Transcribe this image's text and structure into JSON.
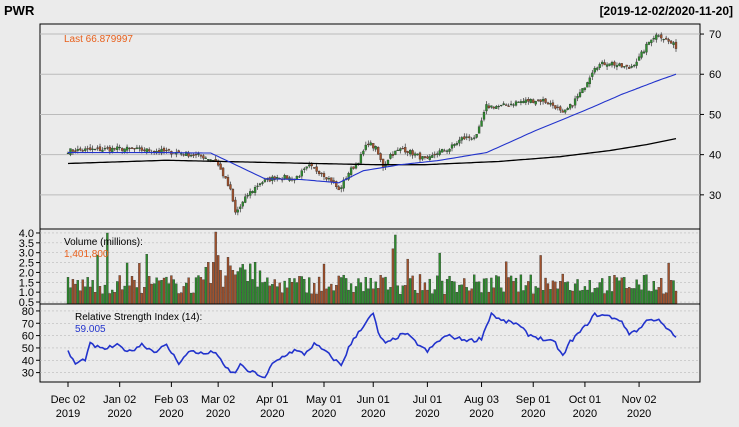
{
  "chart_data": {
    "type": "candlestick",
    "title": "PWR",
    "date_range": "[2019-12-02/2020-11-20]",
    "last_label": "Last 66.879997",
    "x_ticks": [
      {
        "d1": "Dec 02",
        "d2": "2019",
        "i": 0
      },
      {
        "d1": "Jan 02",
        "d2": "2020",
        "i": 21
      },
      {
        "d1": "Feb 03",
        "d2": "2020",
        "i": 42
      },
      {
        "d1": "Mar 02",
        "d2": "2020",
        "i": 61
      },
      {
        "d1": "Apr 01",
        "d2": "2020",
        "i": 83
      },
      {
        "d1": "May 01",
        "d2": "2020",
        "i": 104
      },
      {
        "d1": "Jun 01",
        "d2": "2020",
        "i": 124
      },
      {
        "d1": "Jul 01",
        "d2": "2020",
        "i": 146
      },
      {
        "d1": "Aug 03",
        "d2": "2020",
        "i": 168
      },
      {
        "d1": "Sep 01",
        "d2": "2020",
        "i": 189
      },
      {
        "d1": "Oct 01",
        "d2": "2020",
        "i": 210
      },
      {
        "d1": "Nov 02",
        "d2": "2020",
        "i": 232
      }
    ],
    "n_days": 248,
    "price_panel": {
      "ylim": [
        22,
        72
      ],
      "y_ticks": [
        30,
        40,
        50,
        60,
        70
      ],
      "close_anchors": [
        [
          0,
          41
        ],
        [
          10,
          41.2
        ],
        [
          21,
          41.5
        ],
        [
          35,
          41
        ],
        [
          45,
          40.5
        ],
        [
          55,
          39.5
        ],
        [
          60,
          38.5
        ],
        [
          63,
          35
        ],
        [
          66,
          31
        ],
        [
          68,
          25.5
        ],
        [
          70,
          27
        ],
        [
          73,
          30
        ],
        [
          78,
          33
        ],
        [
          85,
          34.5
        ],
        [
          92,
          34
        ],
        [
          98,
          37
        ],
        [
          103,
          35.5
        ],
        [
          108,
          33
        ],
        [
          110,
          31
        ],
        [
          114,
          35.5
        ],
        [
          118,
          38.5
        ],
        [
          122,
          43
        ],
        [
          125,
          41.5
        ],
        [
          128,
          37
        ],
        [
          131,
          40
        ],
        [
          136,
          41.5
        ],
        [
          141,
          40
        ],
        [
          146,
          38.5
        ],
        [
          150,
          40.5
        ],
        [
          155,
          41.5
        ],
        [
          160,
          44
        ],
        [
          166,
          44.5
        ],
        [
          170,
          52
        ],
        [
          176,
          52
        ],
        [
          182,
          53
        ],
        [
          188,
          53.5
        ],
        [
          193,
          53.5
        ],
        [
          198,
          52
        ],
        [
          201,
          50
        ],
        [
          204,
          52
        ],
        [
          209,
          56
        ],
        [
          214,
          62
        ],
        [
          220,
          63
        ],
        [
          224,
          62
        ],
        [
          228,
          61.5
        ],
        [
          232,
          64
        ],
        [
          237,
          69
        ],
        [
          240,
          70
        ],
        [
          243,
          68.5
        ],
        [
          247,
          66.88
        ]
      ],
      "sma_black_anchors": [
        [
          0,
          37.8
        ],
        [
          40,
          38.6
        ],
        [
          70,
          38.2
        ],
        [
          100,
          37.8
        ],
        [
          125,
          37.5
        ],
        [
          145,
          37.5
        ],
        [
          175,
          38.3
        ],
        [
          200,
          39.5
        ],
        [
          220,
          41
        ],
        [
          235,
          42.5
        ],
        [
          247,
          44
        ]
      ],
      "sma_blue_anchors": [
        [
          0,
          40.5
        ],
        [
          40,
          40.5
        ],
        [
          58,
          40.4
        ],
        [
          68,
          37.5
        ],
        [
          80,
          34
        ],
        [
          95,
          33.8
        ],
        [
          110,
          33
        ],
        [
          120,
          36
        ],
        [
          135,
          37.5
        ],
        [
          150,
          38.5
        ],
        [
          170,
          40.5
        ],
        [
          190,
          46
        ],
        [
          210,
          51
        ],
        [
          225,
          55
        ],
        [
          240,
          58.5
        ],
        [
          247,
          60
        ]
      ]
    },
    "volume_panel": {
      "label": "Volume (millions):",
      "last_value": "1,401,800",
      "ylim": [
        0.4,
        4.1
      ],
      "y_ticks": [
        0.5,
        1.0,
        1.5,
        2.0,
        2.5,
        3.0,
        3.5,
        4.0
      ],
      "y_tick_labels": [
        "0.5",
        "1.0",
        "1.5",
        "2.0",
        "2.5",
        "3.0",
        "3.5",
        "4.0"
      ]
    },
    "rsi_panel": {
      "label": "Relative Strength Index (14):",
      "last_value": "59.005",
      "ylim": [
        24,
        84
      ],
      "y_ticks": [
        30,
        40,
        50,
        60,
        70,
        80
      ],
      "anchors": [
        [
          0,
          47
        ],
        [
          3,
          37
        ],
        [
          7,
          41
        ],
        [
          9,
          53
        ],
        [
          14,
          49
        ],
        [
          20,
          52
        ],
        [
          25,
          47
        ],
        [
          30,
          53
        ],
        [
          35,
          47
        ],
        [
          40,
          52
        ],
        [
          45,
          38
        ],
        [
          50,
          48
        ],
        [
          55,
          45
        ],
        [
          60,
          47
        ],
        [
          63,
          36
        ],
        [
          66,
          31
        ],
        [
          68,
          29
        ],
        [
          70,
          38
        ],
        [
          72,
          32
        ],
        [
          77,
          29
        ],
        [
          80,
          25
        ],
        [
          83,
          37
        ],
        [
          88,
          44
        ],
        [
          92,
          48
        ],
        [
          96,
          45
        ],
        [
          100,
          53
        ],
        [
          104,
          48
        ],
        [
          108,
          41
        ],
        [
          111,
          36
        ],
        [
          114,
          50
        ],
        [
          118,
          63
        ],
        [
          122,
          73
        ],
        [
          124,
          78
        ],
        [
          126,
          62
        ],
        [
          129,
          53
        ],
        [
          133,
          58
        ],
        [
          137,
          62
        ],
        [
          141,
          55
        ],
        [
          146,
          47
        ],
        [
          150,
          55
        ],
        [
          154,
          60
        ],
        [
          160,
          57
        ],
        [
          165,
          56
        ],
        [
          168,
          58
        ],
        [
          172,
          78
        ],
        [
          176,
          72
        ],
        [
          182,
          70
        ],
        [
          187,
          61
        ],
        [
          193,
          57
        ],
        [
          198,
          54
        ],
        [
          201,
          43
        ],
        [
          204,
          55
        ],
        [
          209,
          65
        ],
        [
          214,
          77
        ],
        [
          219,
          76
        ],
        [
          224,
          73
        ],
        [
          228,
          62
        ],
        [
          232,
          65
        ],
        [
          236,
          74
        ],
        [
          240,
          72
        ],
        [
          244,
          64
        ],
        [
          247,
          59
        ]
      ]
    }
  },
  "colors": {
    "background": "#ebebeb",
    "up": "#2e8b2e",
    "down": "#a0522d",
    "last_label": "#e8601c",
    "blue_line": "#2233cc",
    "rsi_line": "#2233cc",
    "sma_black": "#000000",
    "grid": "#bbbbbb"
  }
}
